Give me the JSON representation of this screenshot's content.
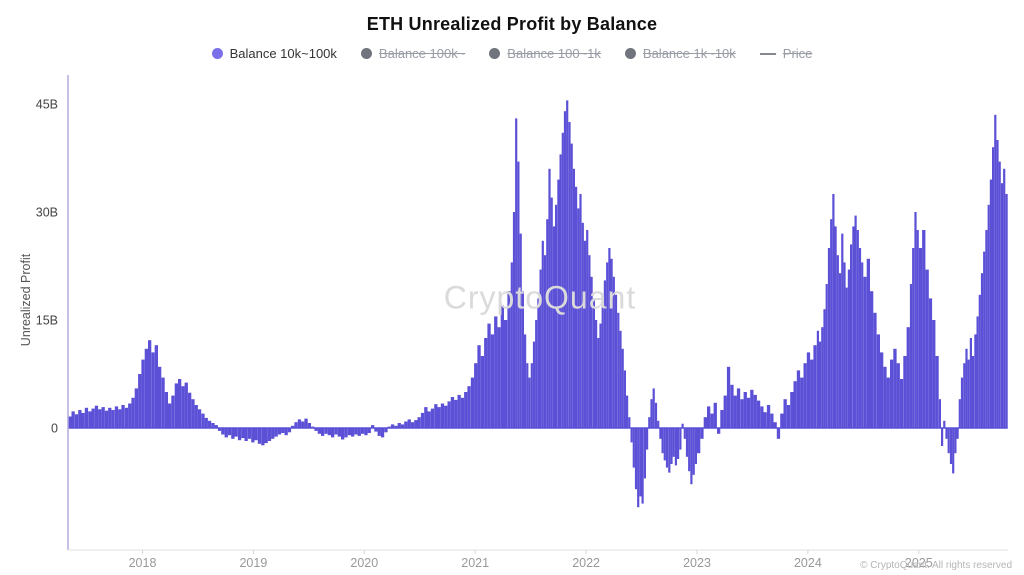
{
  "header": {
    "title": "ETH Unrealized Profit by Balance"
  },
  "legend": {
    "items": [
      {
        "label": "Balance 10k~100k",
        "active": true,
        "marker": "dot"
      },
      {
        "label": "Balance 100k~",
        "active": false,
        "marker": "dot"
      },
      {
        "label": "Balance 100~1k",
        "active": false,
        "marker": "dot"
      },
      {
        "label": "Balance 1k~10k",
        "active": false,
        "marker": "dot"
      },
      {
        "label": "Price",
        "active": false,
        "marker": "line"
      }
    ]
  },
  "watermark": {
    "text": "CryptoQuant"
  },
  "footer": {
    "text": "© CryptoQuant. All rights reserved"
  },
  "colors": {
    "bar": "#5b50d6",
    "legend_active_dot": "#7b70e9",
    "legend_disabled_dot": "#70757d",
    "legend_disabled_text": "#989ca4",
    "axis_line": "#b4abdd",
    "baseline": "#e2e2e2",
    "tick_mark": "#d5d5d5",
    "y_tick_text": "#444444",
    "x_tick_text": "#999999",
    "watermark": "#dadada",
    "footer_text": "#b5b5b5"
  },
  "chart_data": {
    "type": "bar",
    "title": "ETH Unrealized Profit by Balance",
    "ylabel": "Unrealized Profit",
    "xlabel": "",
    "unit": "B = billions USD",
    "series_name": "Balance 10k~100k",
    "grid": false,
    "legend_position": "top",
    "zero_line": true,
    "ylim": [
      -17,
      49
    ],
    "xlim": [
      2017.3,
      2025.85
    ],
    "y_ticks": [
      {
        "label": "45B",
        "value": 45
      },
      {
        "label": "30B",
        "value": 30
      },
      {
        "label": "15B",
        "value": 15
      },
      {
        "label": "0",
        "value": 0
      }
    ],
    "x_ticks": [
      2018,
      2019,
      2020,
      2021,
      2022,
      2023,
      2024,
      2025
    ],
    "points": [
      [
        2017.33,
        1.6
      ],
      [
        2017.36,
        2.3
      ],
      [
        2017.39,
        1.9
      ],
      [
        2017.42,
        2.5
      ],
      [
        2017.45,
        2.1
      ],
      [
        2017.48,
        2.8
      ],
      [
        2017.51,
        2.3
      ],
      [
        2017.54,
        2.7
      ],
      [
        2017.57,
        3.1
      ],
      [
        2017.6,
        2.6
      ],
      [
        2017.63,
        2.9
      ],
      [
        2017.66,
        2.4
      ],
      [
        2017.69,
        2.8
      ],
      [
        2017.72,
        2.5
      ],
      [
        2017.75,
        3
      ],
      [
        2017.78,
        2.6
      ],
      [
        2017.81,
        3.2
      ],
      [
        2017.84,
        2.8
      ],
      [
        2017.87,
        3.4
      ],
      [
        2017.9,
        4.2
      ],
      [
        2017.93,
        5.5
      ],
      [
        2017.96,
        7.5
      ],
      [
        2017.99,
        9.5
      ],
      [
        2018.02,
        11
      ],
      [
        2018.05,
        12.2
      ],
      [
        2018.08,
        10.5
      ],
      [
        2018.11,
        11.5
      ],
      [
        2018.14,
        8.5
      ],
      [
        2018.17,
        7
      ],
      [
        2018.2,
        5
      ],
      [
        2018.23,
        3.4
      ],
      [
        2018.26,
        4.5
      ],
      [
        2018.29,
        6.2
      ],
      [
        2018.32,
        6.8
      ],
      [
        2018.35,
        5.8
      ],
      [
        2018.38,
        6.3
      ],
      [
        2018.41,
        4.9
      ],
      [
        2018.44,
        4
      ],
      [
        2018.47,
        3.2
      ],
      [
        2018.5,
        2.6
      ],
      [
        2018.53,
        2
      ],
      [
        2018.56,
        1.4
      ],
      [
        2018.59,
        1
      ],
      [
        2018.62,
        0.7
      ],
      [
        2018.65,
        0.4
      ],
      [
        2018.68,
        -0.4
      ],
      [
        2018.71,
        -0.9
      ],
      [
        2018.74,
        -1.3
      ],
      [
        2018.77,
        -1
      ],
      [
        2018.8,
        -1.5
      ],
      [
        2018.83,
        -1.2
      ],
      [
        2018.86,
        -1.7
      ],
      [
        2018.89,
        -1.4
      ],
      [
        2018.92,
        -1.8
      ],
      [
        2018.95,
        -1.5
      ],
      [
        2018.98,
        -2
      ],
      [
        2019.01,
        -1.7
      ],
      [
        2019.04,
        -2.2
      ],
      [
        2019.07,
        -2.4
      ],
      [
        2019.1,
        -2.1
      ],
      [
        2019.13,
        -1.8
      ],
      [
        2019.16,
        -1.5
      ],
      [
        2019.19,
        -1.2
      ],
      [
        2019.22,
        -0.9
      ],
      [
        2019.25,
        -0.7
      ],
      [
        2019.28,
        -1
      ],
      [
        2019.31,
        -0.6
      ],
      [
        2019.34,
        0.3
      ],
      [
        2019.37,
        0.8
      ],
      [
        2019.4,
        1.2
      ],
      [
        2019.43,
        0.9
      ],
      [
        2019.46,
        1.3
      ],
      [
        2019.49,
        0.7
      ],
      [
        2019.52,
        0.2
      ],
      [
        2019.55,
        -0.4
      ],
      [
        2019.58,
        -0.8
      ],
      [
        2019.61,
        -1.1
      ],
      [
        2019.64,
        -0.8
      ],
      [
        2019.67,
        -1
      ],
      [
        2019.7,
        -1.3
      ],
      [
        2019.73,
        -0.9
      ],
      [
        2019.76,
        -1.2
      ],
      [
        2019.79,
        -1.6
      ],
      [
        2019.82,
        -1.3
      ],
      [
        2019.85,
        -1
      ],
      [
        2019.88,
        -1.2
      ],
      [
        2019.91,
        -0.9
      ],
      [
        2019.94,
        -1.1
      ],
      [
        2019.97,
        -0.8
      ],
      [
        2020,
        -1
      ],
      [
        2020.03,
        -0.7
      ],
      [
        2020.06,
        0.4
      ],
      [
        2020.09,
        -0.5
      ],
      [
        2020.12,
        -1.1
      ],
      [
        2020.15,
        -1.3
      ],
      [
        2020.18,
        -0.6
      ],
      [
        2020.21,
        0.2
      ],
      [
        2020.24,
        0.5
      ],
      [
        2020.27,
        0.3
      ],
      [
        2020.3,
        0.7
      ],
      [
        2020.33,
        0.5
      ],
      [
        2020.36,
        0.9
      ],
      [
        2020.39,
        1.2
      ],
      [
        2020.42,
        0.8
      ],
      [
        2020.45,
        1.1
      ],
      [
        2020.48,
        1.5
      ],
      [
        2020.51,
        2.1
      ],
      [
        2020.54,
        2.9
      ],
      [
        2020.57,
        2.3
      ],
      [
        2020.6,
        2.7
      ],
      [
        2020.63,
        3.3
      ],
      [
        2020.66,
        2.9
      ],
      [
        2020.69,
        3.4
      ],
      [
        2020.72,
        3.1
      ],
      [
        2020.75,
        3.7
      ],
      [
        2020.78,
        4.3
      ],
      [
        2020.81,
        3.9
      ],
      [
        2020.84,
        4.6
      ],
      [
        2020.87,
        4.2
      ],
      [
        2020.9,
        5
      ],
      [
        2020.93,
        5.8
      ],
      [
        2020.96,
        7
      ],
      [
        2020.99,
        9
      ],
      [
        2021.02,
        11.5
      ],
      [
        2021.05,
        10
      ],
      [
        2021.08,
        12.5
      ],
      [
        2021.11,
        14.5
      ],
      [
        2021.14,
        13
      ],
      [
        2021.17,
        15.5
      ],
      [
        2021.2,
        14
      ],
      [
        2021.23,
        17
      ],
      [
        2021.26,
        15
      ],
      [
        2021.29,
        19
      ],
      [
        2021.32,
        23
      ],
      [
        2021.34,
        30
      ],
      [
        2021.36,
        43
      ],
      [
        2021.38,
        37
      ],
      [
        2021.4,
        27
      ],
      [
        2021.42,
        19
      ],
      [
        2021.44,
        13
      ],
      [
        2021.46,
        9
      ],
      [
        2021.48,
        7
      ],
      [
        2021.5,
        9
      ],
      [
        2021.52,
        12
      ],
      [
        2021.54,
        15
      ],
      [
        2021.56,
        18
      ],
      [
        2021.58,
        22
      ],
      [
        2021.6,
        26
      ],
      [
        2021.62,
        24
      ],
      [
        2021.64,
        29
      ],
      [
        2021.66,
        36
      ],
      [
        2021.68,
        32
      ],
      [
        2021.7,
        28
      ],
      [
        2021.72,
        31
      ],
      [
        2021.74,
        34.5
      ],
      [
        2021.76,
        38
      ],
      [
        2021.78,
        41
      ],
      [
        2021.8,
        44
      ],
      [
        2021.82,
        45.5
      ],
      [
        2021.84,
        42.5
      ],
      [
        2021.86,
        39.5
      ],
      [
        2021.88,
        36
      ],
      [
        2021.9,
        33.5
      ],
      [
        2021.92,
        30.5
      ],
      [
        2021.94,
        32.5
      ],
      [
        2021.96,
        28.5
      ],
      [
        2021.98,
        26
      ],
      [
        2022,
        27.5
      ],
      [
        2022.02,
        24
      ],
      [
        2022.04,
        21
      ],
      [
        2022.06,
        18
      ],
      [
        2022.08,
        15
      ],
      [
        2022.1,
        12.5
      ],
      [
        2022.12,
        14.5
      ],
      [
        2022.14,
        17.5
      ],
      [
        2022.16,
        20.5
      ],
      [
        2022.18,
        23
      ],
      [
        2022.2,
        25
      ],
      [
        2022.22,
        23.5
      ],
      [
        2022.24,
        21
      ],
      [
        2022.26,
        18.5
      ],
      [
        2022.28,
        16
      ],
      [
        2022.3,
        13.5
      ],
      [
        2022.32,
        11
      ],
      [
        2022.34,
        8
      ],
      [
        2022.36,
        4.5
      ],
      [
        2022.38,
        1.5
      ],
      [
        2022.4,
        -2
      ],
      [
        2022.42,
        -5.5
      ],
      [
        2022.44,
        -8.5
      ],
      [
        2022.46,
        -11
      ],
      [
        2022.48,
        -9.5
      ],
      [
        2022.5,
        -10.5
      ],
      [
        2022.52,
        -7
      ],
      [
        2022.54,
        -3
      ],
      [
        2022.56,
        1.5
      ],
      [
        2022.58,
        4
      ],
      [
        2022.6,
        5.5
      ],
      [
        2022.62,
        3.5
      ],
      [
        2022.64,
        1
      ],
      [
        2022.66,
        -1.5
      ],
      [
        2022.68,
        -3.5
      ],
      [
        2022.7,
        -4.5
      ],
      [
        2022.72,
        -5.5
      ],
      [
        2022.74,
        -6.2
      ],
      [
        2022.76,
        -5
      ],
      [
        2022.78,
        -4
      ],
      [
        2022.8,
        -5.2
      ],
      [
        2022.82,
        -4.3
      ],
      [
        2022.84,
        -3
      ],
      [
        2022.86,
        0.6
      ],
      [
        2022.88,
        -1.5
      ],
      [
        2022.9,
        -4
      ],
      [
        2022.92,
        -6
      ],
      [
        2022.94,
        -7.8
      ],
      [
        2022.96,
        -6.5
      ],
      [
        2022.98,
        -5
      ],
      [
        2023,
        -3.5
      ],
      [
        2023.03,
        -1.5
      ],
      [
        2023.06,
        1.5
      ],
      [
        2023.09,
        3
      ],
      [
        2023.12,
        2
      ],
      [
        2023.15,
        3.5
      ],
      [
        2023.18,
        -0.8
      ],
      [
        2023.21,
        2.5
      ],
      [
        2023.24,
        4.5
      ],
      [
        2023.27,
        8.5
      ],
      [
        2023.3,
        6
      ],
      [
        2023.33,
        4.5
      ],
      [
        2023.36,
        5.5
      ],
      [
        2023.39,
        4
      ],
      [
        2023.42,
        5
      ],
      [
        2023.45,
        4.2
      ],
      [
        2023.48,
        5.3
      ],
      [
        2023.51,
        4.6
      ],
      [
        2023.54,
        3.8
      ],
      [
        2023.57,
        3
      ],
      [
        2023.6,
        2.2
      ],
      [
        2023.63,
        3.2
      ],
      [
        2023.66,
        2
      ],
      [
        2023.69,
        0.8
      ],
      [
        2023.72,
        -1.5
      ],
      [
        2023.75,
        2
      ],
      [
        2023.78,
        4
      ],
      [
        2023.81,
        3.2
      ],
      [
        2023.84,
        5
      ],
      [
        2023.87,
        6.5
      ],
      [
        2023.9,
        8
      ],
      [
        2023.93,
        7
      ],
      [
        2023.96,
        9
      ],
      [
        2023.99,
        10.5
      ],
      [
        2024.02,
        9.5
      ],
      [
        2024.05,
        11.5
      ],
      [
        2024.08,
        13.5
      ],
      [
        2024.1,
        12
      ],
      [
        2024.12,
        14
      ],
      [
        2024.14,
        16.5
      ],
      [
        2024.16,
        20
      ],
      [
        2024.18,
        25
      ],
      [
        2024.2,
        29
      ],
      [
        2024.22,
        32.5
      ],
      [
        2024.24,
        28
      ],
      [
        2024.26,
        24
      ],
      [
        2024.28,
        21.5
      ],
      [
        2024.3,
        27
      ],
      [
        2024.32,
        23
      ],
      [
        2024.34,
        19.5
      ],
      [
        2024.36,
        22
      ],
      [
        2024.38,
        25.5
      ],
      [
        2024.4,
        28
      ],
      [
        2024.42,
        29.5
      ],
      [
        2024.44,
        27.5
      ],
      [
        2024.46,
        25
      ],
      [
        2024.48,
        23
      ],
      [
        2024.5,
        21
      ],
      [
        2024.53,
        23.5
      ],
      [
        2024.56,
        19
      ],
      [
        2024.59,
        16
      ],
      [
        2024.62,
        13
      ],
      [
        2024.65,
        10.5
      ],
      [
        2024.68,
        8.5
      ],
      [
        2024.71,
        7
      ],
      [
        2024.74,
        9.5
      ],
      [
        2024.77,
        11
      ],
      [
        2024.8,
        9
      ],
      [
        2024.83,
        6.8
      ],
      [
        2024.86,
        10
      ],
      [
        2024.89,
        14
      ],
      [
        2024.92,
        20
      ],
      [
        2024.94,
        25
      ],
      [
        2024.96,
        30
      ],
      [
        2024.98,
        27.5
      ],
      [
        2025,
        25
      ],
      [
        2025.03,
        27.5
      ],
      [
        2025.06,
        22
      ],
      [
        2025.09,
        18
      ],
      [
        2025.12,
        15
      ],
      [
        2025.15,
        10
      ],
      [
        2025.18,
        4
      ],
      [
        2025.2,
        -2.5
      ],
      [
        2025.22,
        1
      ],
      [
        2025.24,
        -1.5
      ],
      [
        2025.26,
        -3.5
      ],
      [
        2025.28,
        -5
      ],
      [
        2025.3,
        -6.3
      ],
      [
        2025.32,
        -3.5
      ],
      [
        2025.34,
        -1.5
      ],
      [
        2025.36,
        4
      ],
      [
        2025.38,
        7
      ],
      [
        2025.4,
        9
      ],
      [
        2025.42,
        11
      ],
      [
        2025.44,
        9.5
      ],
      [
        2025.46,
        12.5
      ],
      [
        2025.48,
        10
      ],
      [
        2025.5,
        13
      ],
      [
        2025.52,
        15.5
      ],
      [
        2025.54,
        18.5
      ],
      [
        2025.56,
        21.5
      ],
      [
        2025.58,
        24.5
      ],
      [
        2025.6,
        27.5
      ],
      [
        2025.62,
        31
      ],
      [
        2025.64,
        34.5
      ],
      [
        2025.66,
        39
      ],
      [
        2025.68,
        43.5
      ],
      [
        2025.7,
        40
      ],
      [
        2025.72,
        37
      ],
      [
        2025.74,
        34
      ],
      [
        2025.76,
        36
      ],
      [
        2025.78,
        32.5
      ]
    ]
  }
}
